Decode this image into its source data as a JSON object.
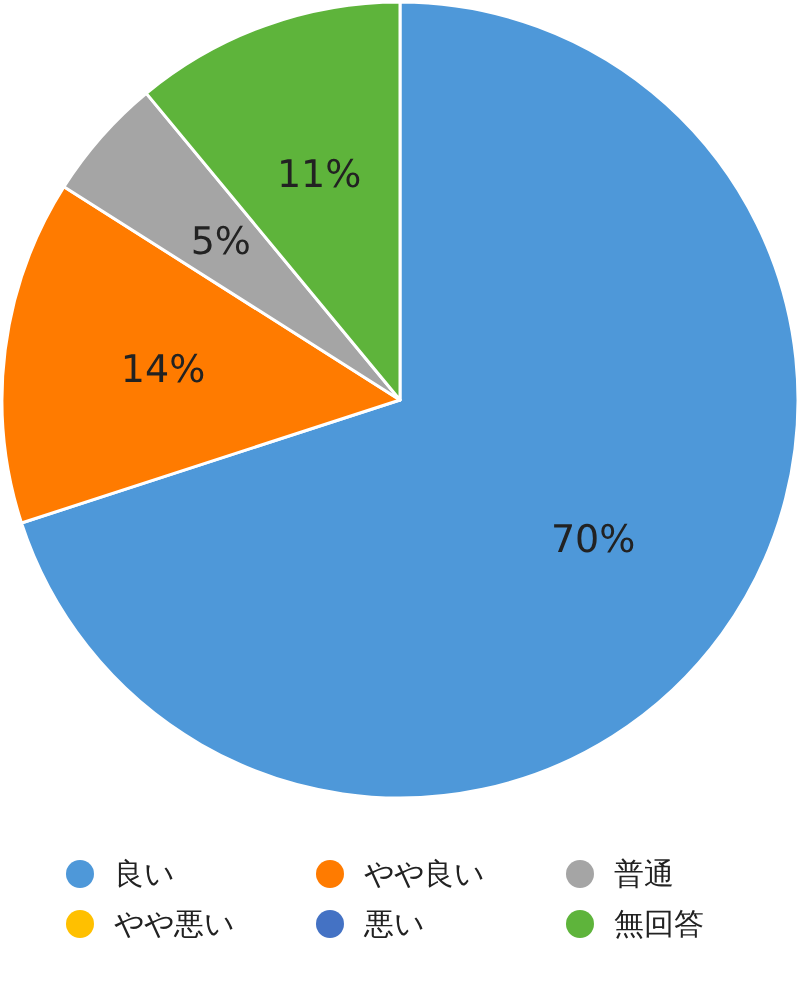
{
  "chart_data": {
    "type": "pie",
    "categories": [
      "良い",
      "やや良い",
      "普通",
      "やや悪い",
      "悪い",
      "無回答"
    ],
    "values": [
      70,
      14,
      5,
      0,
      0,
      11
    ],
    "colors": [
      "#4e98d9",
      "#ff7b00",
      "#a5a5a5",
      "#ffc000",
      "#4472c4",
      "#5eb43b"
    ],
    "value_labels": [
      "70%",
      "14%",
      "5%",
      null,
      null,
      "11%"
    ],
    "legend": "bottom"
  }
}
